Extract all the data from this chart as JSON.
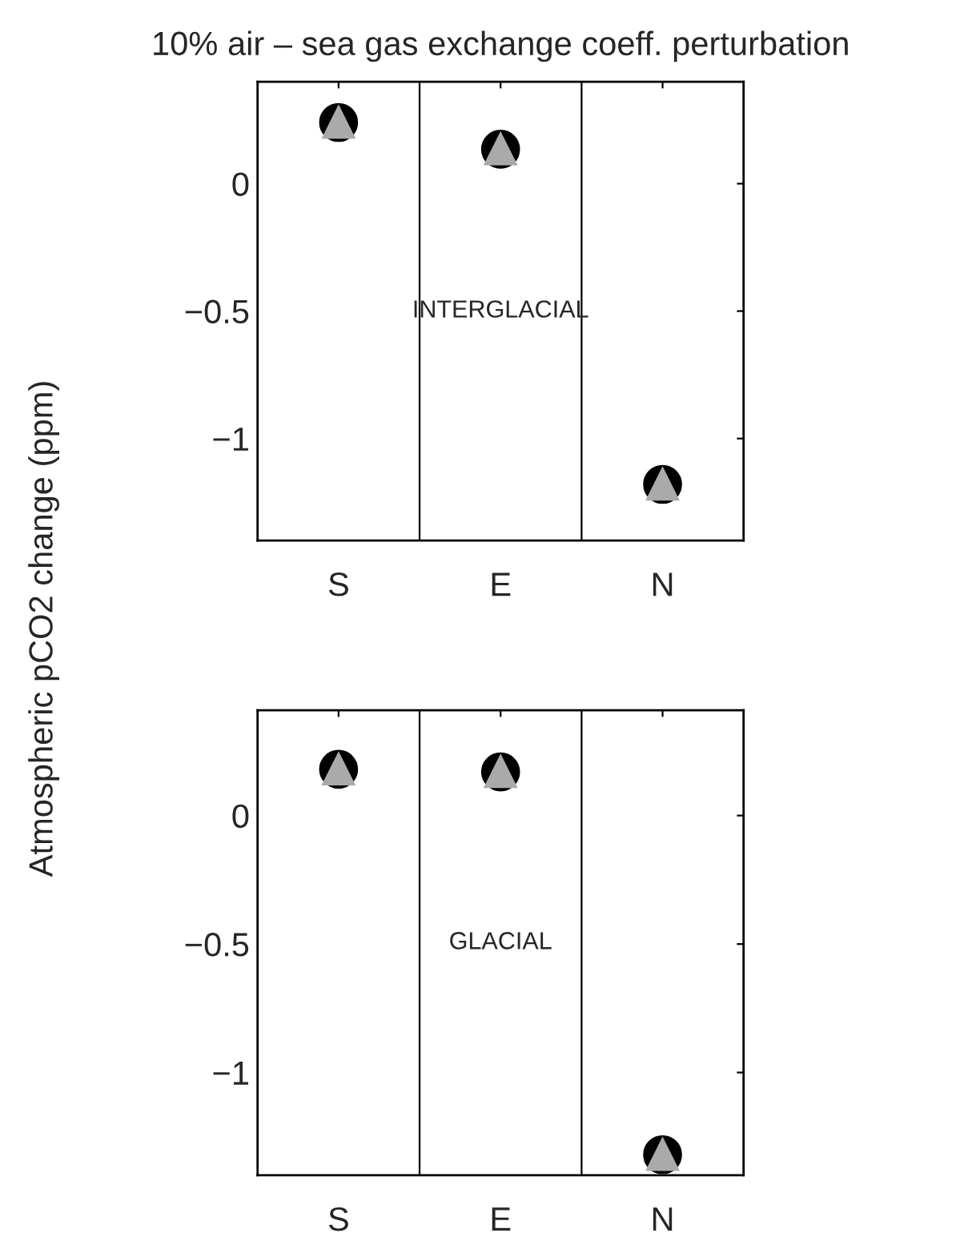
{
  "chart_data": [
    {
      "type": "scatter",
      "title": "10% air – sea gas exchange coeff. perturbation",
      "ylabel": "Atmospheric pCO2 change (ppm)",
      "annotations": [
        "INTERGLACIAL"
      ],
      "categories": [
        "S",
        "E",
        "N"
      ],
      "ylim": [
        -1.4,
        0.4
      ],
      "yticks": [
        -1,
        -0.5,
        0
      ],
      "series": [
        {
          "color": "#000000",
          "marker": "circle",
          "values": [
            0.24,
            0.135,
            -1.18
          ]
        },
        {
          "color": "#aaaaaa",
          "marker": "triangle",
          "values": [
            0.24,
            0.135,
            -1.18
          ]
        }
      ]
    },
    {
      "type": "scatter",
      "annotations": [
        "GLACIAL"
      ],
      "categories": [
        "S",
        "E",
        "N"
      ],
      "ylim": [
        -1.4,
        0.41
      ],
      "yticks": [
        -1,
        -0.5,
        0
      ],
      "series": [
        {
          "color": "#000000",
          "marker": "circle",
          "values": [
            0.18,
            0.17,
            -1.32
          ]
        },
        {
          "color": "#aaaaaa",
          "marker": "triangle",
          "values": [
            0.18,
            0.17,
            -1.32
          ]
        }
      ]
    }
  ]
}
